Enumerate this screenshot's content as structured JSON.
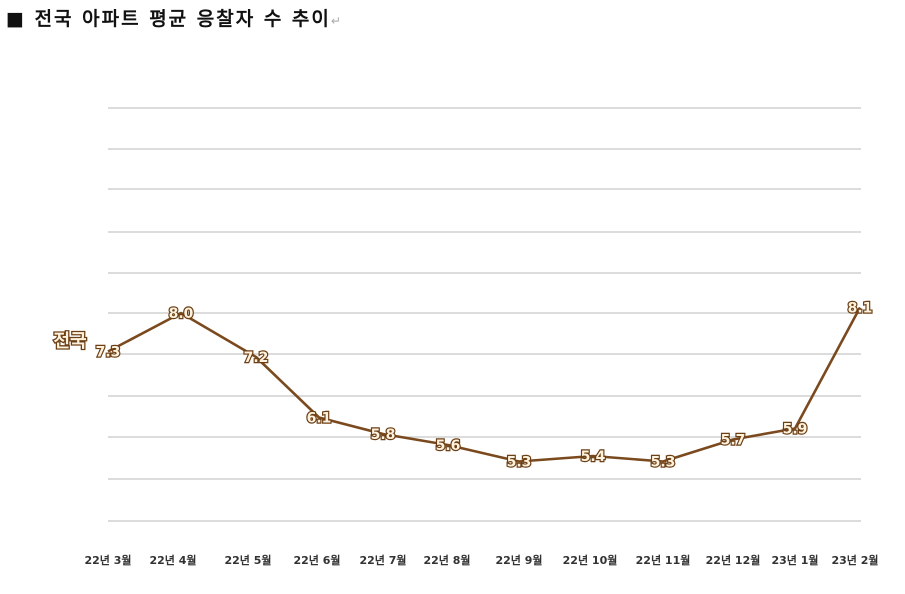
{
  "title": {
    "text": "■ 전국 아파트 평균 응찰자 수 추이",
    "paragraph_mark": "↵"
  },
  "colors": {
    "line": "#7a4a1e",
    "label_fill": "#fff2dc",
    "label_stroke": "#6b3f16",
    "grid": "#d0d0d0"
  },
  "chart_data": {
    "type": "line",
    "title": "전국 아파트 평균 응찰자 수 추이",
    "xlabel": "",
    "ylabel": "",
    "categories": [
      "22년 3월",
      "22년 4월",
      "22년 5월",
      "22년 6월",
      "22년 7월",
      "22년 8월",
      "22년 9월",
      "22년 10월",
      "22년 11월",
      "22년 12월",
      "23년 1월",
      "23년 2월"
    ],
    "series": [
      {
        "name": "전국",
        "values": [
          7.3,
          8.0,
          7.2,
          6.1,
          5.8,
          5.6,
          5.3,
          5.4,
          5.3,
          5.7,
          5.9,
          8.1
        ],
        "labels": [
          "7.3",
          "8.0",
          "7.2",
          "6.1",
          "5.8",
          "5.6",
          "5.3",
          "5.4",
          "5.3",
          "5.7",
          "5.9",
          "8.1"
        ]
      }
    ],
    "grid": true,
    "gridline_count": 11,
    "legend_position": "inline-left",
    "data_labels": true,
    "axis_visible": false
  }
}
